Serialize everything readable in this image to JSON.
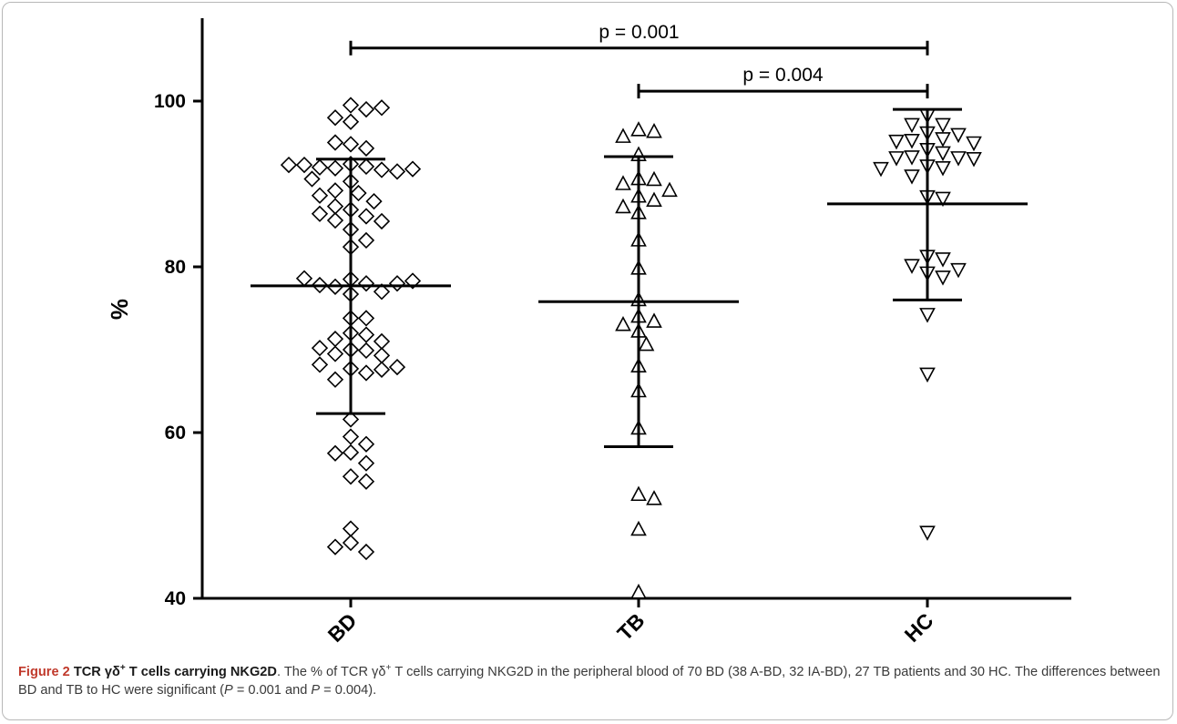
{
  "chart_data": {
    "type": "scatter",
    "ylabel": "%",
    "ylim": [
      40,
      110
    ],
    "yticks": [
      40,
      60,
      80,
      100
    ],
    "categories": [
      "BD",
      "TB",
      "HC"
    ],
    "series": [
      {
        "name": "BD",
        "marker": "diamond",
        "mean": 77.7,
        "sd_upper": 93.0,
        "sd_lower": 62.3,
        "values": [
          99.5,
          99.0,
          97.5,
          98.0,
          99.2,
          94.8,
          94.3,
          95.0,
          92.4,
          92.1,
          91.9,
          91.7,
          92.0,
          91.5,
          92.3,
          91.8,
          92.3,
          90.3,
          90.6,
          88.9,
          89.2,
          87.9,
          86.9,
          86.1,
          85.6,
          85.5,
          86.4,
          87.3,
          84.5,
          82.4,
          83.2,
          78.5,
          78.0,
          77.6,
          76.7,
          77.0,
          77.8,
          78.0,
          78.6,
          73.8,
          72.0,
          71.8,
          73.8,
          71.3,
          70.0,
          69.9,
          69.5,
          69.3,
          70.2,
          67.7,
          67.2,
          66.4,
          67.6,
          68.2,
          61.6,
          59.5,
          58.6,
          57.6,
          57.5,
          56.3,
          54.7,
          54.1,
          48.4,
          46.7,
          45.6,
          46.2,
          78.3,
          88.6,
          71.0,
          67.9
        ]
      },
      {
        "name": "TB",
        "marker": "triangle-up",
        "mean": 75.8,
        "sd_upper": 93.3,
        "sd_lower": 58.3,
        "values": [
          96.5,
          96.3,
          95.7,
          93.5,
          90.6,
          90.5,
          90.0,
          89.2,
          88.5,
          88.0,
          87.2,
          86.5,
          83.2,
          79.8,
          76.0,
          74.0,
          73.4,
          72.2,
          70.6,
          68.0,
          65.0,
          60.5,
          52.5,
          52.0,
          48.3,
          40.7,
          73.0
        ]
      },
      {
        "name": "HC",
        "marker": "triangle-down",
        "mean": 87.6,
        "sd_upper": 99.0,
        "sd_lower": 76.0,
        "values": [
          98.3,
          97.2,
          97.2,
          96.2,
          96.0,
          95.5,
          95.3,
          95.2,
          95.0,
          94.2,
          93.8,
          93.3,
          93.2,
          93.2,
          93.1,
          92.2,
          92.0,
          91.9,
          91.0,
          88.5,
          88.3,
          81.3,
          81.0,
          80.2,
          79.7,
          79.3,
          78.8,
          74.3,
          67.1,
          48.0
        ]
      }
    ],
    "significance": [
      {
        "from": "BD",
        "to": "HC",
        "label": "p = 0.001",
        "y": 106.4
      },
      {
        "from": "TB",
        "to": "HC",
        "label": "p = 0.004",
        "y": 101.2
      }
    ]
  },
  "caption": {
    "figure_label": "Figure 2",
    "title_prefix": "TCR γδ",
    "title_sup": "+",
    "title_suffix": " T cells carrying NKG2D",
    "body_1": ". The % of TCR γδ",
    "body_sup": "+",
    "body_2": " T cells carrying NKG2D in the peripheral blood of 70 BD (38 A-BD, 32 IA-BD), 27 TB patients and 30 HC. The differences between BD and TB to HC were significant (",
    "p1_symbol": "P",
    "p1_value": " = 0.001 and ",
    "p2_symbol": "P",
    "p2_value": " = 0.004)."
  },
  "colors": {
    "ink": "#000000",
    "figure_label": "#c0392b",
    "frame": "#b8b8b8"
  }
}
